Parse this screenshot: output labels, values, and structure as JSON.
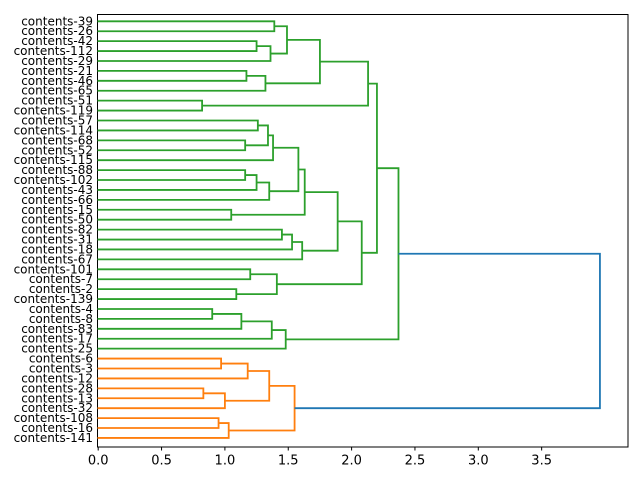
{
  "figure": {
    "background": "#ffffff",
    "kind": "dendrogram"
  },
  "chart_data": {
    "type": "dendrogram",
    "orientation": "left",
    "title": "",
    "xlabel": "",
    "ylabel": "",
    "grid": false,
    "xlim": [
      0,
      4.18
    ],
    "xticks": [
      0.0,
      0.5,
      1.0,
      1.5,
      2.0,
      2.5,
      3.0,
      3.5
    ],
    "xtick_labels": [
      "0.0",
      "0.5",
      "1.0",
      "1.5",
      "2.0",
      "2.5",
      "3.0",
      "3.5"
    ],
    "colors": {
      "root_link": "#1f77b4",
      "green_cluster": "#2ca02c",
      "orange_cluster": "#ff7f0e",
      "spine": "#000000"
    },
    "leaves": [
      "contents-39",
      "contents-26",
      "contents-42",
      "contents-112",
      "contents-29",
      "contents-21",
      "contents-46",
      "contents-65",
      "contents-51",
      "contents-119",
      "contents-57",
      "contents-114",
      "contents-68",
      "contents-52",
      "contents-115",
      "contents-88",
      "contents-102",
      "contents-43",
      "contents-66",
      "contents-15",
      "contents-50",
      "contents-82",
      "contents-31",
      "contents-18",
      "contents-67",
      "contents-101",
      "contents-7",
      "contents-2",
      "contents-139",
      "contents-4",
      "contents-8",
      "contents-83",
      "contents-17",
      "contents-25",
      "contents-6",
      "contents-3",
      "contents-12",
      "contents-28",
      "contents-13",
      "contents-32",
      "contents-108",
      "contents-16",
      "contents-141"
    ],
    "tree": {
      "d": 3.96,
      "color": "#1f77b4",
      "c": [
        {
          "d": 2.37,
          "color": "#2ca02c",
          "c": [
            {
              "d": 2.2,
              "c": [
                {
                  "d": 2.13,
                  "c": [
                    {
                      "d": 1.75,
                      "c": [
                        {
                          "d": 1.49,
                          "c": [
                            {
                              "d": 1.39,
                              "c": [
                                "contents-39",
                                "contents-26"
                              ]
                            },
                            {
                              "d": 1.36,
                              "c": [
                                {
                                  "d": 1.25,
                                  "c": [
                                    "contents-42",
                                    "contents-112"
                                  ]
                                },
                                "contents-29"
                              ]
                            }
                          ]
                        },
                        {
                          "d": 1.32,
                          "c": [
                            {
                              "d": 1.17,
                              "c": [
                                "contents-21",
                                "contents-46"
                              ]
                            },
                            "contents-65"
                          ]
                        }
                      ]
                    },
                    {
                      "d": 0.82,
                      "c": [
                        "contents-51",
                        "contents-119"
                      ]
                    }
                  ]
                },
                {
                  "d": 2.08,
                  "c": [
                    {
                      "d": 1.89,
                      "c": [
                        {
                          "d": 1.63,
                          "c": [
                            {
                              "d": 1.58,
                              "c": [
                                {
                                  "d": 1.38,
                                  "c": [
                                    {
                                      "d": 1.34,
                                      "c": [
                                        {
                                          "d": 1.26,
                                          "c": [
                                            "contents-57",
                                            "contents-114"
                                          ]
                                        },
                                        {
                                          "d": 1.16,
                                          "c": [
                                            "contents-68",
                                            "contents-52"
                                          ]
                                        }
                                      ]
                                    },
                                    "contents-115"
                                  ]
                                },
                                {
                                  "d": 1.35,
                                  "c": [
                                    {
                                      "d": 1.25,
                                      "c": [
                                        {
                                          "d": 1.16,
                                          "c": [
                                            "contents-88",
                                            "contents-102"
                                          ]
                                        },
                                        "contents-43"
                                      ]
                                    },
                                    "contents-66"
                                  ]
                                }
                              ]
                            },
                            {
                              "d": 1.05,
                              "c": [
                                "contents-15",
                                "contents-50"
                              ]
                            }
                          ]
                        },
                        {
                          "d": 1.61,
                          "c": [
                            {
                              "d": 1.53,
                              "c": [
                                {
                                  "d": 1.45,
                                  "c": [
                                    "contents-82",
                                    "contents-31"
                                  ]
                                },
                                "contents-18"
                              ]
                            },
                            "contents-67"
                          ]
                        }
                      ]
                    },
                    {
                      "d": 1.41,
                      "c": [
                        {
                          "d": 1.2,
                          "c": [
                            "contents-101",
                            "contents-7"
                          ]
                        },
                        {
                          "d": 1.09,
                          "c": [
                            "contents-2",
                            "contents-139"
                          ]
                        }
                      ]
                    }
                  ]
                }
              ]
            },
            {
              "d": 1.48,
              "c": [
                {
                  "d": 1.37,
                  "c": [
                    {
                      "d": 1.13,
                      "c": [
                        {
                          "d": 0.9,
                          "c": [
                            "contents-4",
                            "contents-8"
                          ]
                        },
                        "contents-83"
                      ]
                    },
                    "contents-17"
                  ]
                },
                "contents-25"
              ]
            }
          ]
        },
        {
          "d": 1.55,
          "color": "#ff7f0e",
          "c": [
            {
              "d": 1.35,
              "c": [
                {
                  "d": 1.18,
                  "c": [
                    {
                      "d": 0.97,
                      "c": [
                        "contents-6",
                        "contents-3"
                      ]
                    },
                    "contents-12"
                  ]
                },
                {
                  "d": 1.0,
                  "c": [
                    {
                      "d": 0.83,
                      "c": [
                        "contents-28",
                        "contents-13"
                      ]
                    },
                    "contents-32"
                  ]
                }
              ]
            },
            {
              "d": 1.03,
              "c": [
                {
                  "d": 0.95,
                  "c": [
                    "contents-108",
                    "contents-16"
                  ]
                },
                "contents-141"
              ]
            }
          ]
        }
      ]
    }
  }
}
